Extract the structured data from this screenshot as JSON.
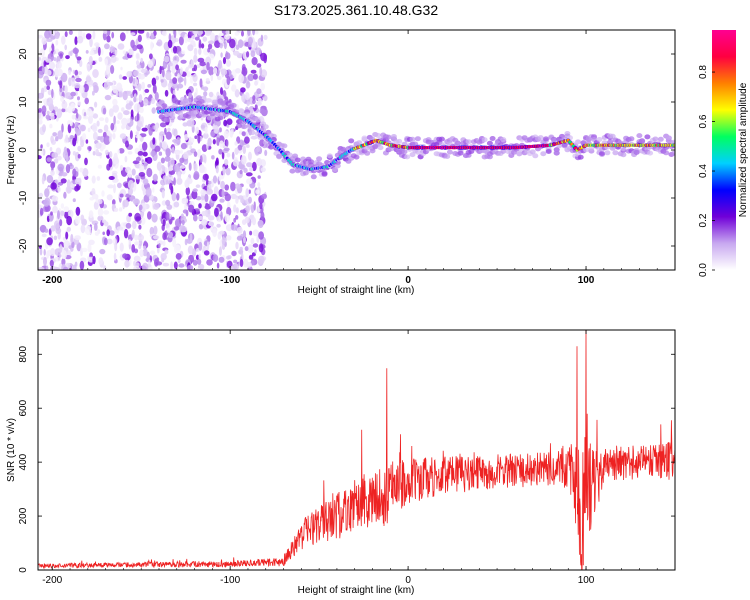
{
  "figure": {
    "title": "S173.2025.361.10.48.G32"
  },
  "chart_data": [
    {
      "type": "heatmap",
      "xlabel": "Height of straight line (km)",
      "ylabel": "Frequency (Hz)",
      "xlim": [
        -208,
        150
      ],
      "ylim": [
        -25,
        25
      ],
      "xticks": [
        -200,
        -100,
        0,
        100
      ],
      "yticks": [
        -20,
        -10,
        0,
        10,
        20
      ],
      "colorbar": {
        "label": "Normalized spectral amplitude",
        "range": [
          0.0,
          0.97
        ],
        "ticks": [
          "0.0",
          "0.2",
          "0.4",
          "0.6",
          "0.8"
        ],
        "tick_values": [
          0.0,
          0.2,
          0.4,
          0.6,
          0.8
        ],
        "colors": [
          "#ffffff",
          "#c8a8f0",
          "#7000d8",
          "#0000ff",
          "#00d0ff",
          "#00ff60",
          "#ffff00",
          "#ff8000",
          "#ff0040",
          "#ff0090"
        ]
      },
      "noise_region_x": [
        -208,
        -80
      ],
      "signal_track": {
        "x": [
          -140,
          -130,
          -120,
          -110,
          -100,
          -90,
          -80,
          -72,
          -65,
          -55,
          -45,
          -38,
          -32,
          -25,
          -18,
          -10,
          0,
          20,
          40,
          60,
          80,
          90,
          95,
          100,
          110,
          130,
          150
        ],
        "f": [
          8,
          8.5,
          9,
          8.5,
          8,
          6,
          3,
          0,
          -3,
          -4,
          -3.5,
          -1.5,
          0,
          1,
          2,
          1,
          0.5,
          0.5,
          0.5,
          0.5,
          1,
          2,
          0,
          1,
          1,
          1,
          1
        ]
      }
    },
    {
      "type": "line",
      "xlabel": "Height of straight line (km)",
      "ylabel": "SNR (10 * v/v)",
      "xlim": [
        -208,
        150
      ],
      "ylim": [
        0,
        890
      ],
      "xticks": [
        -200,
        -100,
        0,
        100
      ],
      "yticks": [
        0,
        200,
        400,
        600,
        800
      ],
      "color": "#ee2222",
      "envelope": {
        "x": [
          -208,
          -150,
          -100,
          -70,
          -60,
          -50,
          -40,
          -30,
          -20,
          -12,
          -10,
          0,
          10,
          20,
          40,
          60,
          80,
          90,
          95,
          97,
          100,
          103,
          110,
          130,
          150
        ],
        "mean": [
          15,
          20,
          22,
          30,
          130,
          170,
          200,
          240,
          260,
          280,
          300,
          330,
          340,
          350,
          360,
          370,
          375,
          380,
          300,
          150,
          380,
          300,
          390,
          400,
          405
        ],
        "spread": [
          10,
          12,
          15,
          20,
          70,
          90,
          110,
          120,
          130,
          150,
          130,
          110,
          100,
          90,
          80,
          80,
          80,
          100,
          250,
          400,
          300,
          200,
          80,
          80,
          90
        ]
      },
      "spikes": [
        {
          "x": -12,
          "y": 748
        },
        {
          "x": -26,
          "y": 520
        },
        {
          "x": 2,
          "y": 460
        },
        {
          "x": 95,
          "y": 830
        },
        {
          "x": 100,
          "y": 890
        },
        {
          "x": 97,
          "y": 30
        },
        {
          "x": 142,
          "y": 540
        },
        {
          "x": 148,
          "y": 555
        },
        {
          "x": 80,
          "y": 470
        }
      ]
    }
  ]
}
